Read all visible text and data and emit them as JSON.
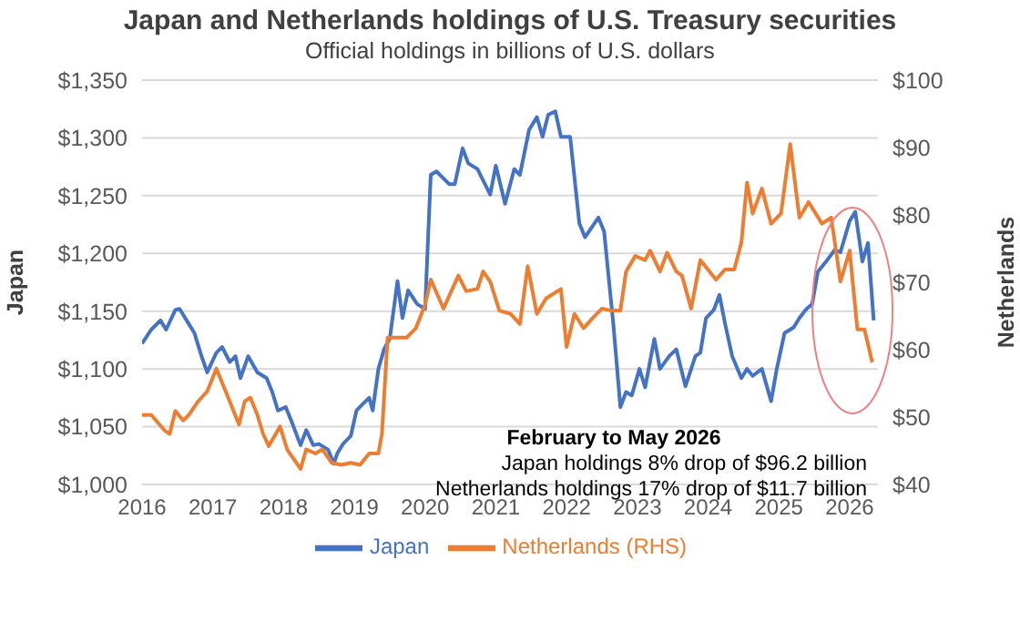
{
  "chart_data": {
    "type": "line",
    "title": "Japan and Netherlands holdings of U.S. Treasury securities",
    "subtitle": "Official holdings in billions of U.S. dollars",
    "ylabel": "Japan",
    "y2label": "Netherlands",
    "xlim": [
      2016,
      2026.4
    ],
    "xticks": [
      2016,
      2017,
      2018,
      2019,
      2020,
      2021,
      2022,
      2023,
      2024,
      2025,
      2026
    ],
    "ylim": [
      1000,
      1350
    ],
    "yticks": [
      {
        "value": 1000,
        "label": "$1,000"
      },
      {
        "value": 1050,
        "label": "$1,050"
      },
      {
        "value": 1100,
        "label": "$1,100"
      },
      {
        "value": 1150,
        "label": "$1,150"
      },
      {
        "value": 1200,
        "label": "$1,200"
      },
      {
        "value": 1250,
        "label": "$1,250"
      },
      {
        "value": 1300,
        "label": "$1,300"
      },
      {
        "value": 1350,
        "label": "$1,350"
      }
    ],
    "y2lim": [
      40,
      100
    ],
    "y2ticks": [
      {
        "value": 40,
        "label": "$40"
      },
      {
        "value": 50,
        "label": "$50"
      },
      {
        "value": 60,
        "label": "$60"
      },
      {
        "value": 70,
        "label": "$70"
      },
      {
        "value": 80,
        "label": "$80"
      },
      {
        "value": 90,
        "label": "$90"
      },
      {
        "value": 100,
        "label": "$100"
      }
    ],
    "grid": "y",
    "legend": "bottom",
    "marker": "none",
    "line_style": "solid",
    "annotations": [
      "February to May 2026",
      "Japan holdings 8% drop of $96.2 billion",
      "Netherlands holdings 17% drop of $11.7 billion"
    ],
    "series": [
      {
        "name": "Japan",
        "color": "#4472c4",
        "x": [
          2016.0,
          2016.13,
          2016.26,
          2016.34,
          2016.47,
          2016.53,
          2016.66,
          2016.74,
          2016.84,
          2016.92,
          2017.05,
          2017.13,
          2017.24,
          2017.32,
          2017.39,
          2017.5,
          2017.63,
          2017.76,
          2017.84,
          2017.92,
          2018.03,
          2018.11,
          2018.24,
          2018.32,
          2018.42,
          2018.5,
          2018.63,
          2018.71,
          2018.76,
          2018.84,
          2018.95,
          2019.03,
          2019.11,
          2019.21,
          2019.26,
          2019.34,
          2019.42,
          2019.5,
          2019.61,
          2019.68,
          2019.76,
          2019.89,
          2020.0,
          2020.08,
          2020.16,
          2020.34,
          2020.42,
          2020.53,
          2020.61,
          2020.74,
          2020.92,
          2021.0,
          2021.13,
          2021.26,
          2021.34,
          2021.47,
          2021.58,
          2021.66,
          2021.74,
          2021.84,
          2021.92,
          2022.05,
          2022.18,
          2022.26,
          2022.45,
          2022.53,
          2022.66,
          2022.76,
          2022.84,
          2022.92,
          2023.03,
          2023.11,
          2023.24,
          2023.32,
          2023.45,
          2023.55,
          2023.68,
          2023.82,
          2023.89,
          2023.97,
          2024.08,
          2024.16,
          2024.24,
          2024.34,
          2024.47,
          2024.55,
          2024.63,
          2024.76,
          2024.89,
          2024.97,
          2025.08,
          2025.21,
          2025.29,
          2025.39,
          2025.47,
          2025.55,
          2025.68,
          2025.79,
          2025.87,
          2026.0,
          2026.08,
          2026.18,
          2026.26,
          2026.34
        ],
        "values": [
          1122,
          1134,
          1142,
          1134,
          1151,
          1152,
          1139,
          1131,
          1111,
          1097,
          1114,
          1119,
          1106,
          1111,
          1092,
          1111,
          1097,
          1092,
          1080,
          1064,
          1067,
          1055,
          1034,
          1047,
          1034,
          1035,
          1030,
          1018,
          1027,
          1035,
          1042,
          1064,
          1069,
          1075,
          1064,
          1100,
          1117,
          1126,
          1176,
          1144,
          1168,
          1156,
          1152,
          1268,
          1271,
          1260,
          1260,
          1291,
          1278,
          1273,
          1251,
          1276,
          1243,
          1273,
          1268,
          1307,
          1318,
          1301,
          1320,
          1323,
          1301,
          1301,
          1226,
          1214,
          1231,
          1219,
          1139,
          1067,
          1080,
          1077,
          1100,
          1084,
          1126,
          1100,
          1111,
          1117,
          1085,
          1111,
          1114,
          1144,
          1151,
          1164,
          1139,
          1111,
          1092,
          1100,
          1094,
          1100,
          1072,
          1100,
          1131,
          1136,
          1144,
          1152,
          1156,
          1184,
          1194,
          1203,
          1201,
          1228,
          1236,
          1193,
          1209,
          1142
        ]
      },
      {
        "name": "Netherlands (RHS)",
        "color": "#ed7d31",
        "axis": "y2",
        "x": [
          2016.0,
          2016.13,
          2016.32,
          2016.39,
          2016.47,
          2016.58,
          2016.66,
          2016.79,
          2016.92,
          2017.05,
          2017.24,
          2017.37,
          2017.45,
          2017.53,
          2017.63,
          2017.71,
          2017.79,
          2017.89,
          2017.95,
          2018.05,
          2018.24,
          2018.32,
          2018.45,
          2018.55,
          2018.68,
          2018.82,
          2018.95,
          2019.08,
          2019.21,
          2019.34,
          2019.39,
          2019.47,
          2019.63,
          2019.74,
          2019.87,
          2020.0,
          2020.08,
          2020.26,
          2020.47,
          2020.58,
          2020.74,
          2020.82,
          2020.92,
          2021.05,
          2021.21,
          2021.34,
          2021.45,
          2021.58,
          2021.71,
          2021.92,
          2022.0,
          2022.11,
          2022.24,
          2022.37,
          2022.5,
          2022.63,
          2022.76,
          2022.84,
          2022.97,
          2023.11,
          2023.18,
          2023.32,
          2023.42,
          2023.55,
          2023.63,
          2023.76,
          2023.89,
          2024.11,
          2024.24,
          2024.37,
          2024.47,
          2024.55,
          2024.63,
          2024.76,
          2024.89,
          2025.03,
          2025.16,
          2025.29,
          2025.42,
          2025.61,
          2025.74,
          2025.87,
          2026.0,
          2026.11,
          2026.21,
          2026.32
        ],
        "values": [
          50.3,
          50.3,
          48.0,
          47.5,
          50.9,
          49.5,
          50.3,
          52.3,
          53.8,
          57.2,
          52.3,
          48.9,
          52.3,
          52.9,
          50.3,
          47.5,
          45.7,
          47.5,
          48.6,
          45.2,
          42.3,
          45.2,
          44.6,
          45.2,
          43.2,
          42.9,
          43.2,
          42.9,
          44.6,
          44.6,
          47.5,
          61.8,
          61.8,
          61.8,
          63.2,
          66.7,
          70.4,
          66.1,
          71.0,
          68.7,
          69.0,
          71.6,
          70.1,
          65.8,
          65.3,
          63.8,
          72.4,
          65.3,
          67.6,
          69.0,
          60.4,
          65.3,
          63.2,
          64.7,
          66.1,
          65.8,
          65.8,
          71.6,
          73.9,
          73.3,
          74.7,
          71.6,
          74.4,
          71.6,
          71.0,
          66.1,
          73.3,
          70.4,
          71.9,
          71.9,
          75.9,
          84.8,
          80.2,
          83.9,
          78.7,
          80.2,
          90.5,
          79.6,
          81.9,
          78.7,
          79.6,
          70.1,
          74.7,
          63.0,
          63.0,
          58.1
        ]
      }
    ]
  }
}
